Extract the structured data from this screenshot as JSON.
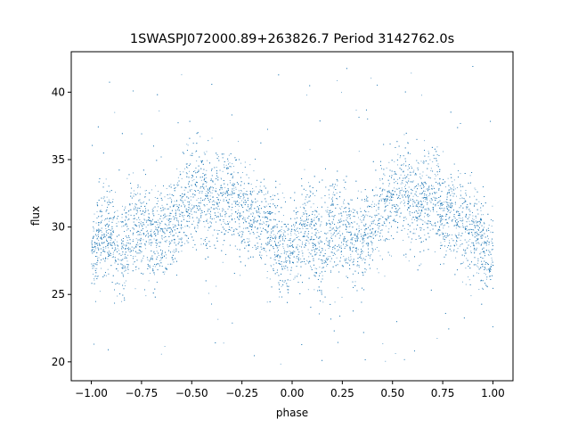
{
  "chart_data": {
    "type": "scatter",
    "title": "1SWASPJ072000.89+263826.7 Period 3142762.0s",
    "xlabel": "phase",
    "ylabel": "flux",
    "xlim": [
      -1.1,
      1.1
    ],
    "ylim": [
      18.6,
      43.0
    ],
    "xticks": [
      -1.0,
      -0.75,
      -0.5,
      -0.25,
      0.0,
      0.25,
      0.5,
      0.75,
      1.0
    ],
    "xtick_labels": [
      "−1.00",
      "−0.75",
      "−0.50",
      "−0.25",
      "0.00",
      "0.25",
      "0.50",
      "0.75",
      "1.00"
    ],
    "yticks": [
      20,
      25,
      30,
      35,
      40
    ],
    "ytick_labels": [
      "20",
      "25",
      "30",
      "35",
      "40"
    ],
    "grid": false,
    "legend": "none",
    "point_color": "#1f77b4",
    "phase_range": [
      -1.0,
      1.0
    ],
    "series": [
      {
        "x": [
          -1.0,
          -0.95,
          -0.9,
          -0.85,
          -0.8,
          -0.75,
          -0.7,
          -0.65,
          -0.6,
          -0.55,
          -0.5,
          -0.45,
          -0.4,
          -0.35,
          -0.3,
          -0.25,
          -0.2,
          -0.15,
          -0.1,
          -0.05,
          0.0,
          0.05,
          0.1,
          0.15,
          0.2,
          0.25,
          0.3,
          0.35,
          0.4,
          0.45,
          0.5,
          0.55,
          0.6,
          0.65,
          0.7,
          0.75,
          0.8,
          0.85,
          0.9,
          0.95,
          1.0
        ],
        "y": [
          27.8,
          29.5,
          29.6,
          28.0,
          30.0,
          30.2,
          29.2,
          29.6,
          30.1,
          31.3,
          32.2,
          32.6,
          31.7,
          32.1,
          32.4,
          31.0,
          30.8,
          30.5,
          29.6,
          28.6,
          27.8,
          29.5,
          29.6,
          28.0,
          30.0,
          30.2,
          29.2,
          29.6,
          30.1,
          31.3,
          32.2,
          32.6,
          31.7,
          32.1,
          32.4,
          31.0,
          30.8,
          30.5,
          29.6,
          28.6,
          27.8
        ],
        "scatter": [
          1.3,
          1.6,
          1.8,
          2.0,
          1.8,
          1.7,
          1.6,
          1.6,
          1.7,
          1.7,
          1.8,
          1.9,
          1.8,
          1.8,
          1.8,
          1.7,
          1.6,
          1.6,
          1.7,
          1.6,
          1.3,
          1.6,
          1.8,
          2.0,
          1.8,
          1.7,
          1.6,
          1.6,
          1.7,
          1.7,
          1.8,
          1.9,
          1.8,
          1.8,
          1.8,
          1.7,
          1.6,
          1.6,
          1.7,
          1.6,
          1.3
        ]
      }
    ],
    "y_extremes": [
      19.8,
      42.0
    ]
  }
}
